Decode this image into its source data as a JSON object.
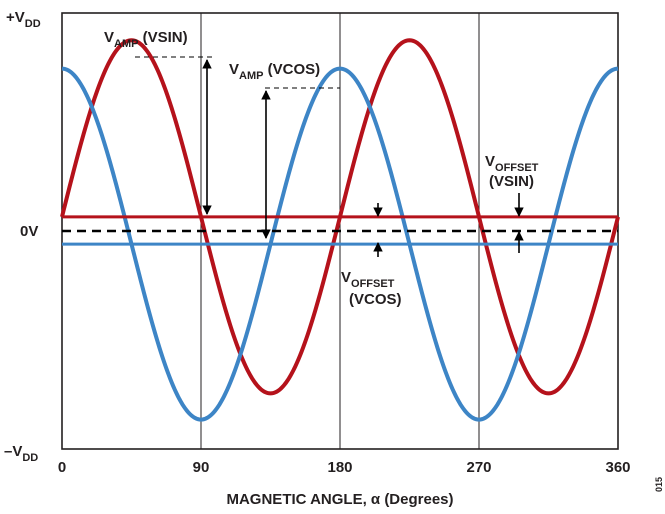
{
  "chart_data": {
    "type": "line",
    "xlabel": "MAGNETIC ANGLE, α (Degrees)",
    "x_ticks": [
      "0",
      "90",
      "180",
      "270",
      "360"
    ],
    "xlim": [
      0,
      360
    ],
    "y_labels": {
      "top": {
        "main": "+V",
        "sub": "DD"
      },
      "zero": "0V",
      "bottom": {
        "main": "–V",
        "sub": "DD"
      }
    },
    "ylim": [
      -1,
      1
    ],
    "zero_line": {
      "style": "dashed",
      "color": "#000000"
    },
    "series": [
      {
        "id": "vsin",
        "function": "sin",
        "period_deg": 180,
        "amplitude": 0.81,
        "offset": 0.065,
        "color": "#b5121b"
      },
      {
        "id": "vcos",
        "function": "cos",
        "period_deg": 180,
        "amplitude": 0.805,
        "offset": -0.06,
        "color": "#3d85c6"
      }
    ],
    "vertical_gridlines_deg": [
      90,
      180,
      270
    ],
    "annotations": {
      "vamp_vsin": {
        "main": "V",
        "sub": "AMP",
        "rest": " (VSIN)"
      },
      "vamp_vcos": {
        "main": "V",
        "sub": "AMP",
        "rest": " (VCOS)"
      },
      "voffset_vsin": {
        "main": "V",
        "sub": "OFFSET",
        "line2": "(VSIN)"
      },
      "voffset_vcos": {
        "main": "V",
        "sub": "OFFSET",
        "line2": "(VCOS)"
      }
    }
  },
  "figure_id": "015"
}
